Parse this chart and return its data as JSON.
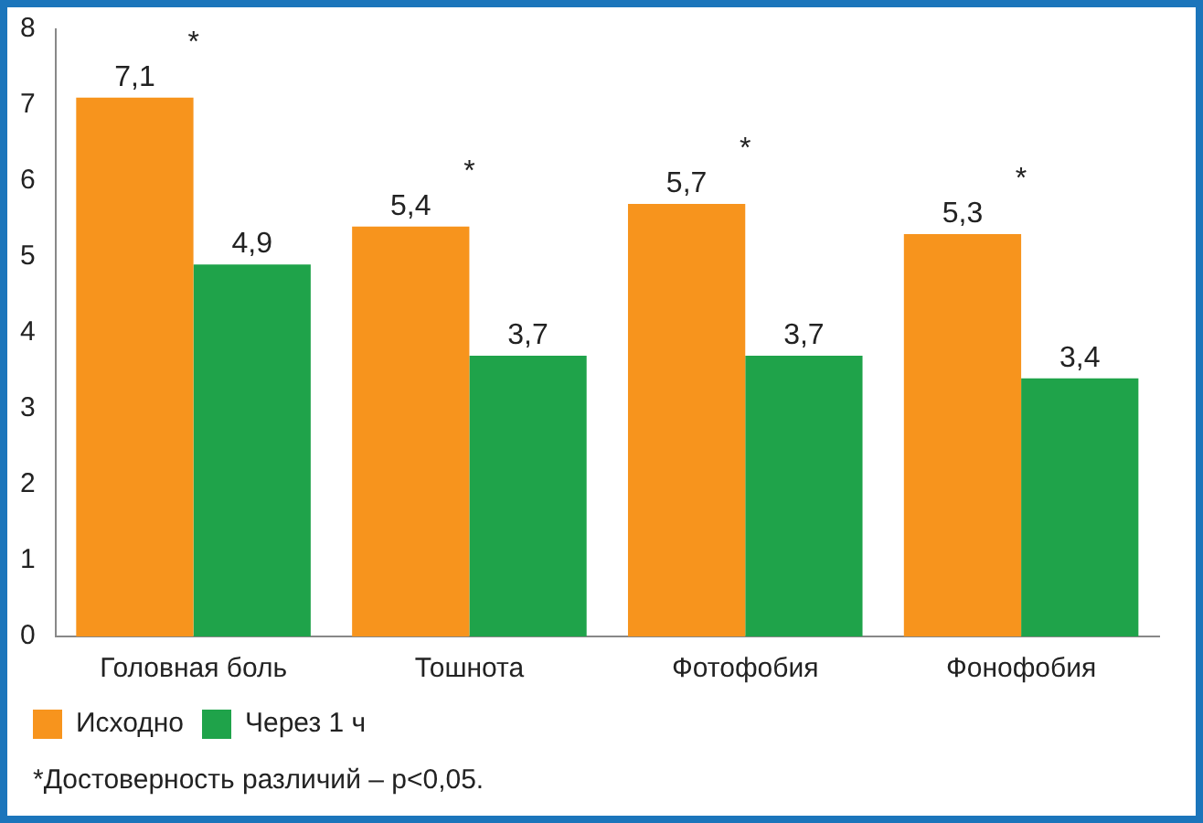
{
  "chart_data": {
    "type": "bar",
    "categories": [
      "Головная боль",
      "Тошнота",
      "Фотофобия",
      "Фонофобия"
    ],
    "series": [
      {
        "name": "Исходно",
        "color": "#f7941d",
        "values": [
          7.1,
          5.4,
          5.7,
          5.3
        ],
        "value_labels": [
          "7,1",
          "5,4",
          "5,7",
          "5,3"
        ]
      },
      {
        "name": "Через 1 ч",
        "color": "#1fa34a",
        "values": [
          4.9,
          3.7,
          3.7,
          3.4
        ],
        "value_labels": [
          "4,9",
          "3,7",
          "3,7",
          "3,4"
        ]
      }
    ],
    "ylim": [
      0,
      8
    ],
    "yticks": [
      0,
      1,
      2,
      3,
      4,
      5,
      6,
      7,
      8
    ],
    "grid": false,
    "legend": "bottom left",
    "annotations": [
      "*",
      "*",
      "*",
      "*",
      "*Достоверность различий – p<0,05."
    ]
  }
}
